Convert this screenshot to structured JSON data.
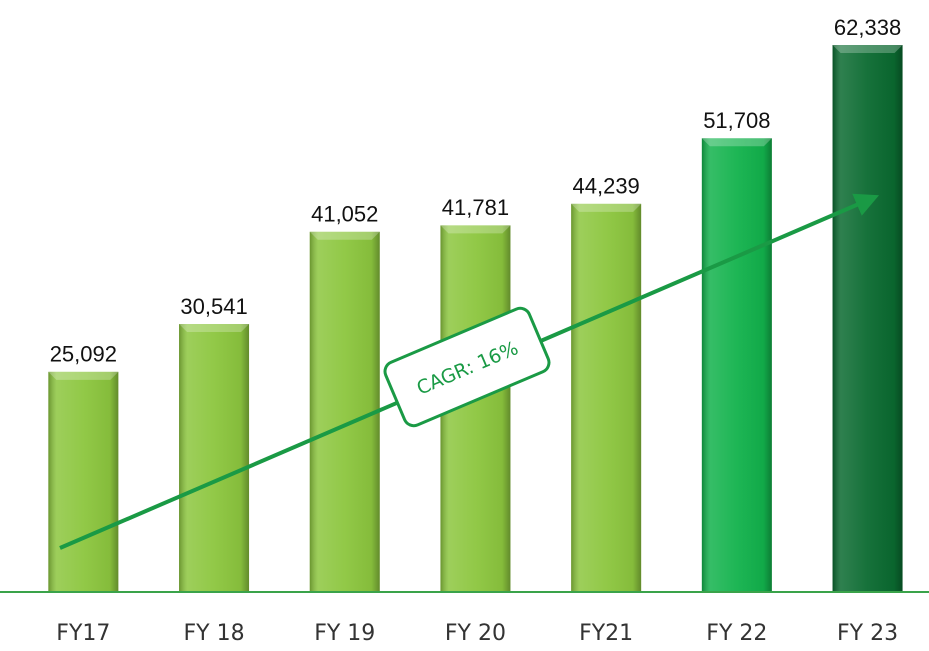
{
  "chart_data": {
    "type": "bar",
    "categories": [
      "FY17",
      "FY 18",
      "FY 19",
      "FY 20",
      "FY21",
      "FY 22",
      "FY 23"
    ],
    "values": [
      25092,
      30541,
      41052,
      41781,
      44239,
      51708,
      62338
    ],
    "value_labels": [
      "25,092",
      "30,541",
      "41,052",
      "41,781",
      "44,239",
      "51,708",
      "62,338"
    ],
    "colors": [
      "#8cc63e",
      "#8cc63e",
      "#8cc63e",
      "#8cc63e",
      "#8cc63e",
      "#12b24c",
      "#0a6a30"
    ],
    "annotation": "CAGR: 16%"
  }
}
